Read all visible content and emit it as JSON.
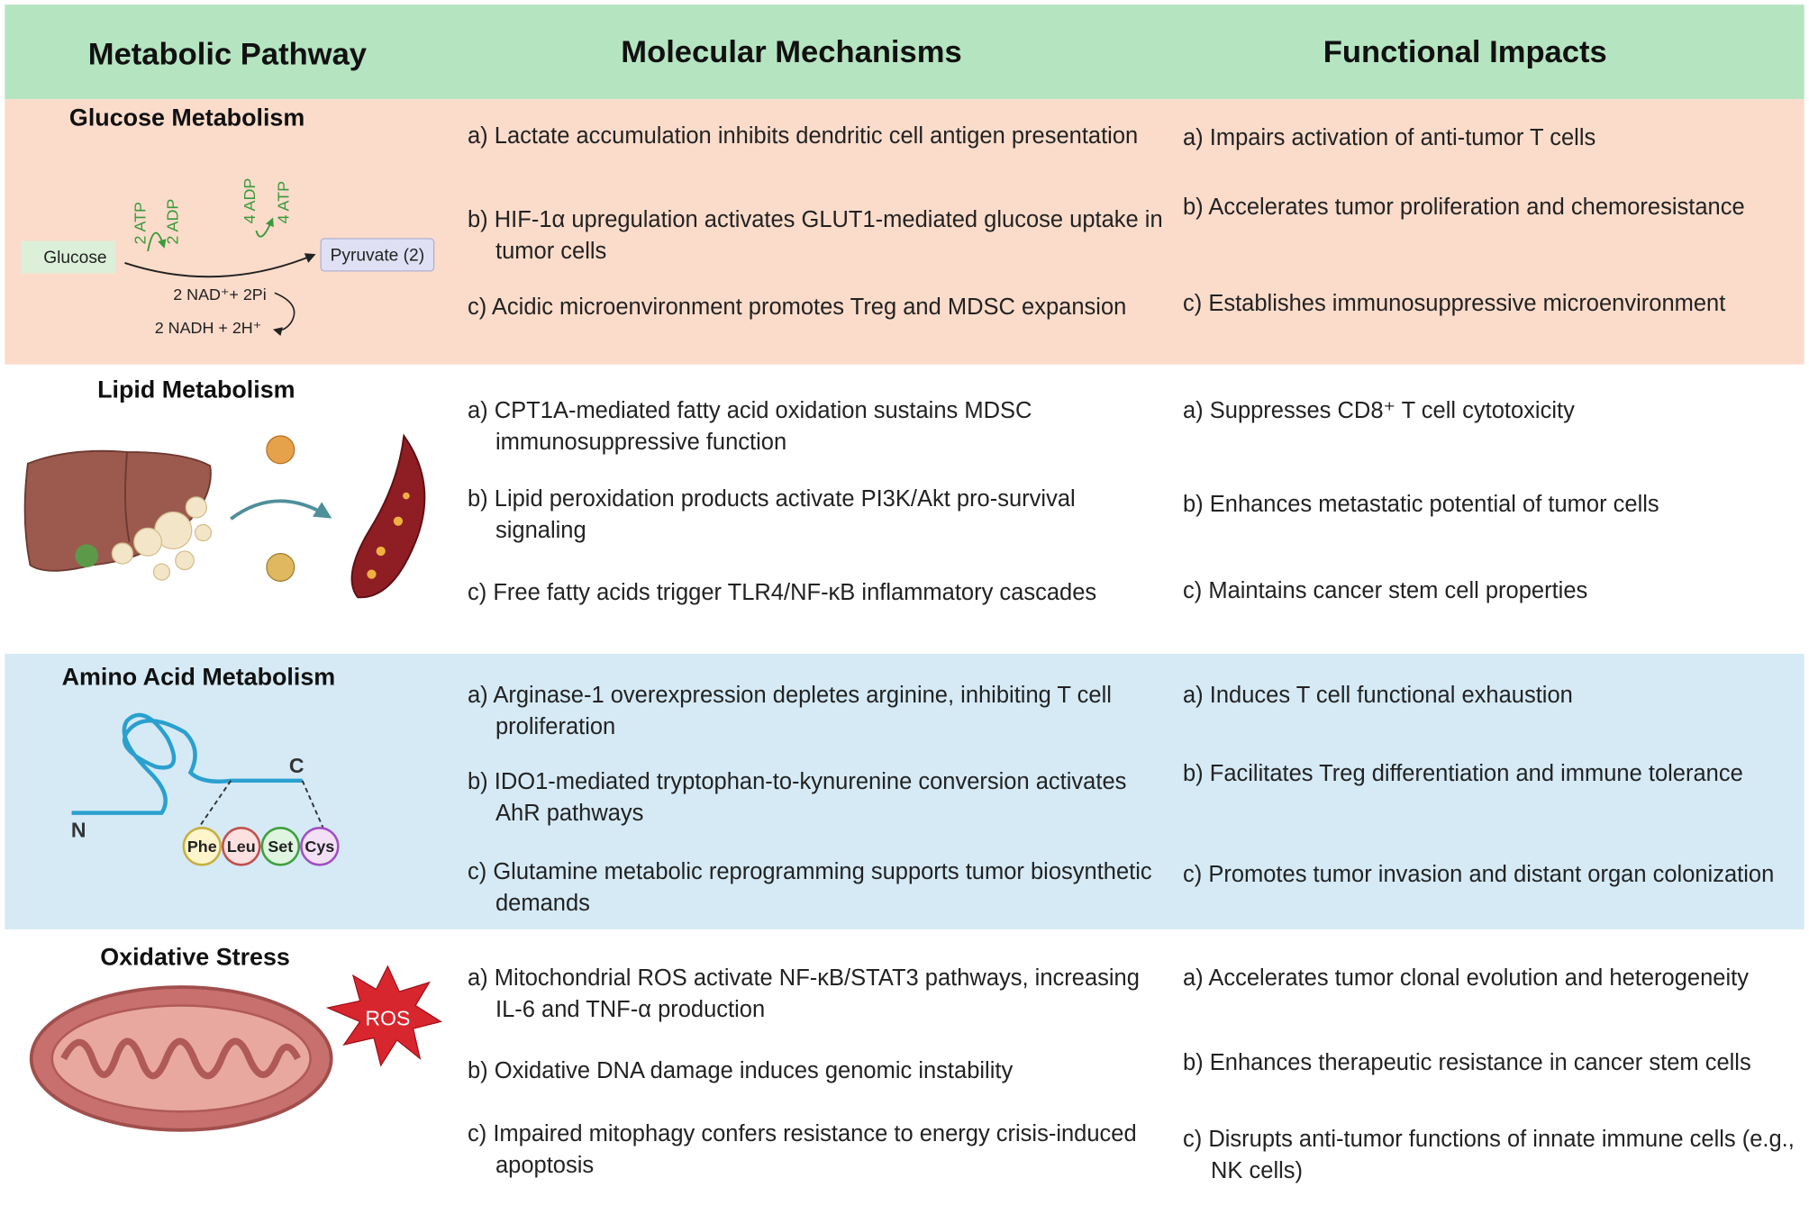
{
  "header": [
    "Metabolic Pathway",
    "Molecular Mechanisms",
    "Functional Impacts"
  ],
  "rows": [
    {
      "pathway": "Glucose Metabolism",
      "labels": {
        "glucose": "Glucose",
        "pyruvate": "Pyruvate (2)",
        "atp2": "2 ATP",
        "adp2": "2 ADP",
        "adp4": "4 ADP",
        "atp4": "4 ATP",
        "nad": "2 NAD⁺+ 2Pi",
        "nadh": "2 NADH + 2H⁺"
      },
      "mechanisms": [
        "a) Lactate accumulation inhibits dendritic cell antigen presentation",
        "b) HIF-1α upregulation activates GLUT1-mediated glucose uptake in tumor cells",
        "c) Acidic microenvironment promotes Treg and MDSC expansion"
      ],
      "impacts": [
        "a) Impairs activation of anti-tumor T cells",
        "b) Accelerates tumor proliferation and chemoresistance",
        "c) Establishes immunosuppressive microenvironment"
      ]
    },
    {
      "pathway": "Lipid Metabolism",
      "mechanisms": [
        "a) CPT1A-mediated fatty acid oxidation sustains MDSC immunosuppressive function",
        "b) Lipid peroxidation products activate PI3K/Akt pro-survival signaling",
        "c) Free fatty acids trigger TLR4/NF-κB inflammatory cascades"
      ],
      "impacts": [
        "a) Suppresses CD8⁺ T cell cytotoxicity",
        "b) Enhances metastatic potential of tumor cells",
        "c) Maintains cancer stem cell properties"
      ]
    },
    {
      "pathway": "Amino Acid Metabolism",
      "labels": {
        "n": "N",
        "c": "C",
        "phe": "Phe",
        "leu": "Leu",
        "set": "Set",
        "cys": "Cys"
      },
      "mechanisms": [
        "a) Arginase-1 overexpression depletes arginine, inhibiting T cell proliferation",
        "b) IDO1-mediated tryptophan-to-kynurenine conversion activates AhR pathways",
        "c) Glutamine metabolic reprogramming supports tumor biosynthetic demands"
      ],
      "impacts": [
        "a) Induces T cell functional exhaustion",
        "b) Facilitates Treg differentiation and immune tolerance",
        "c) Promotes tumor invasion and distant organ colonization"
      ]
    },
    {
      "pathway": "Oxidative Stress",
      "labels": {
        "ros": "ROS"
      },
      "mechanisms": [
        "a) Mitochondrial ROS activate NF-κB/STAT3 pathways, increasing IL-6 and TNF-α production",
        "b) Oxidative DNA damage induces genomic instability",
        "c) Impaired mitophagy confers resistance to energy crisis-induced apoptosis"
      ],
      "impacts": [
        "a) Accelerates tumor clonal evolution and heterogeneity",
        "b) Enhances therapeutic resistance in cancer stem cells",
        "c) Disrupts anti-tumor functions of innate immune cells (e.g., NK cells)"
      ]
    }
  ]
}
